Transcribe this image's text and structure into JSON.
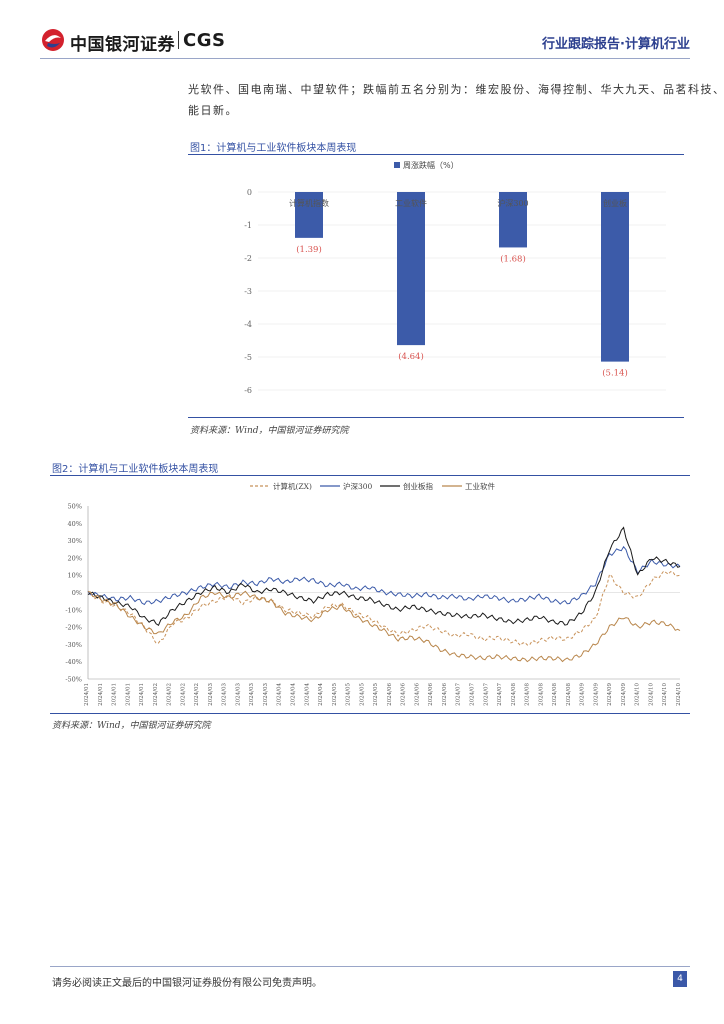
{
  "header": {
    "logo_text": "中国银河证券",
    "logo_brand": "CGS",
    "right_text": "行业跟踪报告·计算机行业"
  },
  "body_text": {
    "line1": "光软件、国电南瑞、中望软件；跌幅前五名分别为：维宏股份、海得控制、华大九天、品茗科技、国",
    "line2": "能日新。"
  },
  "figure1": {
    "title": "图1：计算机与工业软件板块本周表现",
    "source": "资料来源：Wind，中国银河证券研究院"
  },
  "figure2": {
    "title": "图2：计算机与工业软件板块本周表现",
    "source": "资料来源：Wind，中国银河证券研究院"
  },
  "footer": {
    "disclaimer": "请务必阅读正文最后的中国银河证券股份有限公司免责声明。",
    "page_number": "4"
  },
  "chart_data": [
    {
      "type": "bar",
      "title": "图1：计算机与工业软件板块本周表现",
      "legend": [
        "周涨跌幅（%）"
      ],
      "categories": [
        "计算机指数",
        "工业软件",
        "沪深300",
        "创业板"
      ],
      "values": [
        -1.39,
        -4.64,
        -1.68,
        -5.14
      ],
      "value_labels": [
        "(1.39)",
        "(4.64)",
        "(1.68)",
        "(5.14)"
      ],
      "yticks": [
        "0",
        "-1",
        "-2",
        "-3",
        "-4",
        "-5",
        "-6"
      ],
      "ylim": [
        -6,
        0
      ],
      "colors": {
        "bar": "#3c5ba9",
        "label": "#d9534f"
      }
    },
    {
      "type": "line",
      "title": "图2：计算机与工业软件板块本周表现",
      "legend": [
        "计算机(ZX)",
        "沪深300",
        "创业板指",
        "工业软件"
      ],
      "yticks": [
        "50%",
        "40%",
        "30%",
        "20%",
        "10%",
        "0%",
        "-10%",
        "-20%",
        "-30%",
        "-40%",
        "-50%"
      ],
      "ylim": [
        -50,
        50
      ],
      "x_tick_label": "2024/01 … 2024/10",
      "series": [
        {
          "name": "计算机(ZX)",
          "color": "#c8925a",
          "dash": true,
          "values": [
            0,
            -5,
            -8,
            -12,
            -20,
            -30,
            -18,
            -15,
            -8,
            -5,
            -2,
            -6,
            -3,
            -5,
            -10,
            -12,
            -14,
            -8,
            -7,
            -12,
            -15,
            -20,
            -24,
            -22,
            -19,
            -22,
            -25,
            -24,
            -27,
            -26,
            -28,
            -30,
            -28,
            -26,
            -27,
            -22,
            -15,
            10,
            0,
            -3,
            7,
            12,
            10
          ]
        },
        {
          "name": "沪深300",
          "color": "#3c5ba9",
          "dash": false,
          "values": [
            0,
            -2,
            -4,
            -3,
            -6,
            -5,
            -2,
            0,
            3,
            5,
            3,
            6,
            5,
            8,
            6,
            8,
            7,
            4,
            5,
            2,
            3,
            0,
            -1,
            -2,
            -1,
            -3,
            -2,
            -4,
            -2,
            -3,
            -5,
            -4,
            -2,
            -5,
            -6,
            -2,
            5,
            22,
            26,
            12,
            18,
            16,
            15
          ]
        },
        {
          "name": "创业板指",
          "color": "#1b1b1b",
          "dash": false,
          "values": [
            0,
            -3,
            -6,
            -8,
            -15,
            -18,
            -10,
            -5,
            0,
            3,
            0,
            5,
            0,
            2,
            0,
            -3,
            -5,
            -1,
            0,
            -3,
            -4,
            -7,
            -10,
            -8,
            -10,
            -12,
            -13,
            -14,
            -13,
            -15,
            -17,
            -16,
            -14,
            -17,
            -18,
            -12,
            0,
            25,
            37,
            10,
            20,
            18,
            15
          ]
        },
        {
          "name": "工业软件",
          "color": "#b9874d",
          "dash": false,
          "values": [
            0,
            -4,
            -7,
            -14,
            -20,
            -24,
            -17,
            -13,
            -3,
            0,
            -3,
            0,
            -3,
            -5,
            -12,
            -14,
            -16,
            -10,
            -8,
            -14,
            -18,
            -22,
            -27,
            -26,
            -28,
            -33,
            -36,
            -37,
            -38,
            -37,
            -38,
            -39,
            -38,
            -38,
            -39,
            -36,
            -30,
            -20,
            -14,
            -20,
            -17,
            -18,
            -22
          ]
        }
      ]
    }
  ]
}
